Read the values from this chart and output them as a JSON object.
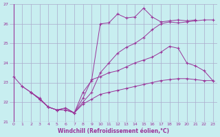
{
  "xlabel": "Windchill (Refroidissement éolien,°C)",
  "bg_color": "#c8eef0",
  "line_color": "#993399",
  "grid_color": "#aaaacc",
  "ylim": [
    21,
    27
  ],
  "xlim": [
    -0.5,
    23.5
  ],
  "yticks": [
    21,
    22,
    23,
    24,
    25,
    26,
    27
  ],
  "xticks": [
    0,
    1,
    2,
    3,
    4,
    5,
    6,
    7,
    8,
    9,
    10,
    11,
    12,
    13,
    14,
    15,
    16,
    17,
    18,
    19,
    20,
    21,
    22,
    23
  ],
  "line1_x": [
    0,
    1,
    2,
    3,
    4,
    5,
    6,
    7,
    8,
    9,
    10,
    11,
    12,
    13,
    14,
    15,
    16,
    17,
    18,
    19,
    20,
    21
  ],
  "line1_y": [
    23.3,
    22.8,
    22.5,
    22.2,
    21.75,
    21.6,
    21.6,
    21.45,
    22.5,
    23.1,
    26.0,
    26.05,
    26.5,
    26.3,
    26.35,
    26.8,
    26.35,
    26.1,
    26.15,
    26.2,
    26.15,
    26.2
  ],
  "line2_x": [
    1,
    2,
    3,
    4,
    5,
    6,
    7,
    8,
    9,
    10,
    11,
    12,
    13,
    14,
    15,
    16,
    17,
    18,
    19,
    20,
    21,
    22,
    23
  ],
  "line2_y": [
    22.8,
    22.5,
    22.15,
    21.75,
    21.6,
    21.6,
    21.45,
    22.0,
    22.5,
    23.5,
    24.0,
    24.5,
    24.8,
    25.0,
    25.3,
    25.7,
    26.0,
    26.1,
    26.05,
    26.1,
    26.15,
    26.2,
    26.2
  ],
  "line3_x": [
    2,
    3,
    4,
    5,
    6,
    7,
    8,
    9,
    10,
    11,
    12,
    13,
    14,
    15,
    16,
    17,
    18,
    19,
    20,
    21,
    22,
    23
  ],
  "line3_y": [
    22.5,
    22.15,
    21.75,
    21.6,
    21.7,
    21.45,
    22.2,
    23.15,
    23.3,
    23.5,
    23.6,
    23.8,
    24.0,
    24.15,
    24.3,
    24.55,
    24.85,
    24.75,
    24.0,
    23.85,
    23.6,
    23.1
  ],
  "line4_x": [
    2,
    3,
    4,
    5,
    6,
    7,
    8,
    9,
    10,
    11,
    12,
    13,
    14,
    15,
    16,
    17,
    18,
    19,
    20,
    21,
    22,
    23
  ],
  "line4_y": [
    22.5,
    22.15,
    21.75,
    21.6,
    21.7,
    21.45,
    21.9,
    22.15,
    22.4,
    22.5,
    22.6,
    22.7,
    22.8,
    22.9,
    23.0,
    23.1,
    23.15,
    23.2,
    23.2,
    23.15,
    23.1,
    23.1
  ]
}
